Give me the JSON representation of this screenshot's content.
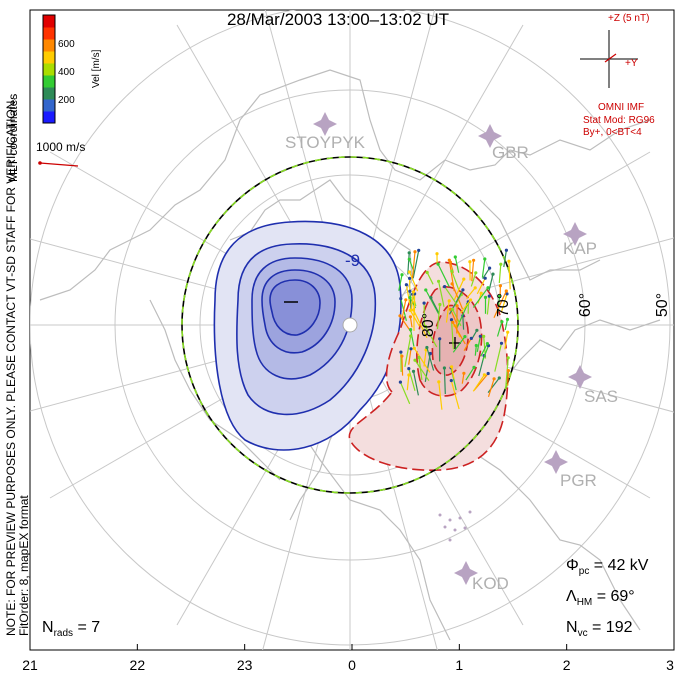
{
  "title": "28/Mar/2003 13:00–13:02 UT",
  "side_text": {
    "line1": "NOTE: FOR PREVIEW PURPOSES ONLY. PLEASE CONTACT VT-SD STAFF FOR VERIFICATION.",
    "line2": "FitOrder: 8, mapEX format"
  },
  "coord_label": "MLT coordinates",
  "colorbar": {
    "label": "Vel [m/s]",
    "ticks": [
      "600",
      "400",
      "200"
    ],
    "colors": [
      "#1a1aff",
      "#3366cc",
      "#2e8b57",
      "#33cc33",
      "#aadd00",
      "#ffcc00",
      "#ff8800",
      "#ff3300",
      "#e00000"
    ]
  },
  "scale_vector": {
    "label": "1000 m/s",
    "color": "#cc0000"
  },
  "imf": {
    "z_label": "+Z (5 nT)",
    "y_label": "+Y",
    "source": "OMNI IMF",
    "model": "Stat Mod: RG96",
    "condition": "By+, 0<BT<4",
    "color": "#cc0000"
  },
  "stations": [
    "STOYPYK",
    "GBR",
    "KAP",
    "SAS",
    "PGR",
    "KOD"
  ],
  "lat_labels": [
    "80°",
    "70°",
    "60°",
    "50°"
  ],
  "contour_label": "-9",
  "stats": {
    "phi_sym": "Φ",
    "phi_sub": "pc",
    "phi_val": " = 42 kV",
    "lam_sym": "Λ",
    "lam_sub": "HM",
    "lam_val": " = 69°",
    "nvc_sym": "N",
    "nvc_sub": "vc",
    "nvc_val": " = 192",
    "nrads_sym": "N",
    "nrads_sub": "rads",
    "nrads_val": " = 7"
  },
  "chart_data": {
    "type": "polar convection map",
    "coordinates": "MLT",
    "mlt_ticks": [
      "21",
      "22",
      "23",
      "0",
      "1",
      "2",
      "3"
    ],
    "latitude_circles": [
      80,
      70,
      60,
      50
    ],
    "heppner_maynard_boundary_deg": 69,
    "cross_polar_cap_potential_kV": 42,
    "n_vectors": 192,
    "n_radars": 7,
    "velocity_range_m_s": [
      0,
      700
    ],
    "potential_cells": [
      {
        "sign": "negative",
        "region": "dusk",
        "color": "#2233bb"
      },
      {
        "sign": "positive",
        "region": "dawn",
        "color": "#cc2222"
      }
    ]
  }
}
